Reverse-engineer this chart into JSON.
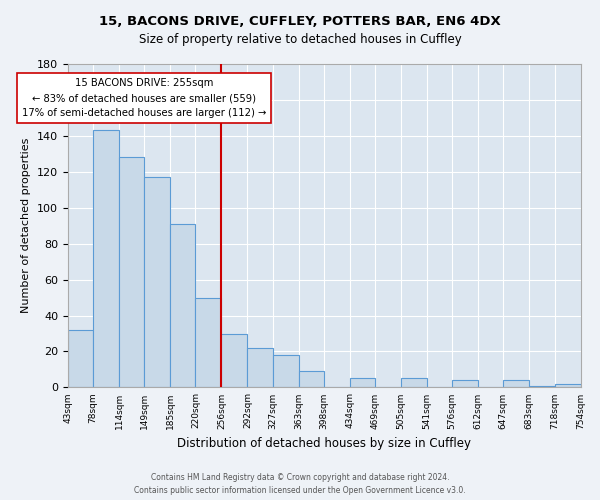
{
  "title": "15, BACONS DRIVE, CUFFLEY, POTTERS BAR, EN6 4DX",
  "subtitle": "Size of property relative to detached houses in Cuffley",
  "xlabel": "Distribution of detached houses by size in Cuffley",
  "ylabel": "Number of detached properties",
  "bar_color": "#c8d9e8",
  "bar_edge_color": "#5b9bd5",
  "background_color": "#dce6f0",
  "grid_color": "#ffffff",
  "bin_labels": [
    "43sqm",
    "78sqm",
    "114sqm",
    "149sqm",
    "185sqm",
    "220sqm",
    "256sqm",
    "292sqm",
    "327sqm",
    "363sqm",
    "398sqm",
    "434sqm",
    "469sqm",
    "505sqm",
    "541sqm",
    "576sqm",
    "612sqm",
    "647sqm",
    "683sqm",
    "718sqm",
    "754sqm"
  ],
  "bar_heights": [
    32,
    143,
    128,
    117,
    91,
    50,
    30,
    22,
    18,
    9,
    0,
    5,
    0,
    5,
    0,
    4,
    0,
    4,
    1,
    2
  ],
  "ylim": [
    0,
    180
  ],
  "yticks": [
    0,
    20,
    40,
    60,
    80,
    100,
    120,
    140,
    160,
    180
  ],
  "property_label": "15 BACONS DRIVE: 255sqm",
  "annotation_line1": "← 83% of detached houses are smaller (559)",
  "annotation_line2": "17% of semi-detached houses are larger (112) →",
  "vline_color": "#cc0000",
  "annotation_box_edge_color": "#cc0000",
  "footer_line1": "Contains HM Land Registry data © Crown copyright and database right 2024.",
  "footer_line2": "Contains public sector information licensed under the Open Government Licence v3.0.",
  "bin_edges": [
    43,
    78,
    114,
    149,
    185,
    220,
    256,
    292,
    327,
    363,
    398,
    434,
    469,
    505,
    541,
    576,
    612,
    647,
    683,
    718,
    754
  ],
  "fig_bg": "#eef2f7"
}
